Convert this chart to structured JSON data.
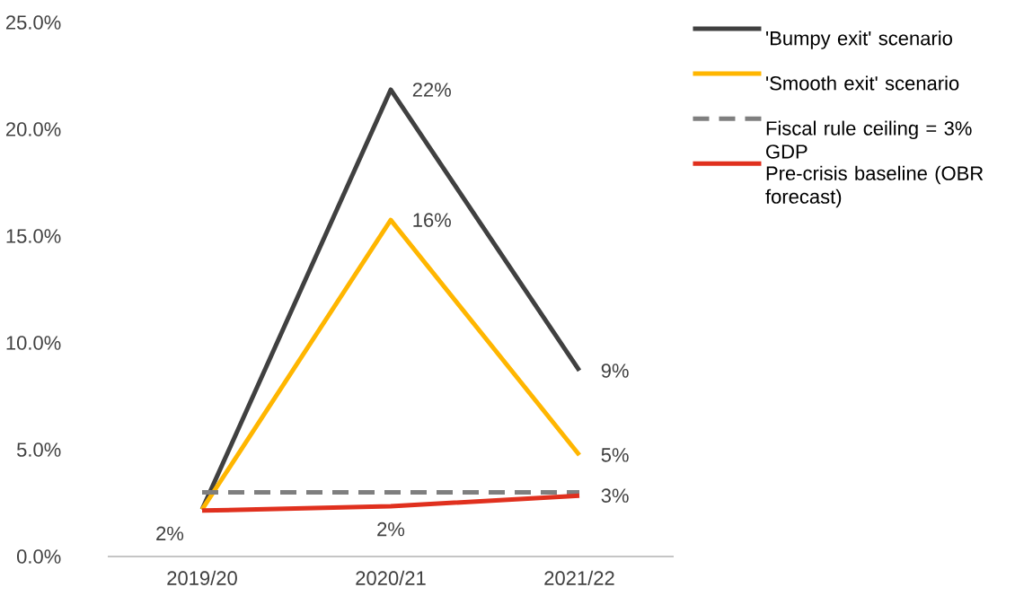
{
  "chart_data": {
    "type": "line",
    "categories": [
      "2019/20",
      "2020/21",
      "2021/22"
    ],
    "series": [
      {
        "name": "'Bumpy exit' scenario",
        "color": "#404040",
        "values": [
          2.2,
          21.85,
          8.7
        ],
        "value_labels": [
          null,
          "22%",
          "9%"
        ]
      },
      {
        "name": "'Smooth exit' scenario",
        "color": "#ffb600",
        "values": [
          2.2,
          15.75,
          4.75
        ],
        "value_labels": [
          null,
          "16%",
          "5%"
        ]
      },
      {
        "name": "Fiscal rule ceiling = 3% GDP",
        "color": "#7f7f7f",
        "values": [
          3,
          3,
          3
        ],
        "line_style": "dashed"
      },
      {
        "name": "Pre-crisis baseline (OBR forecast)",
        "color": "#e0301e",
        "values": [
          2.15,
          2.35,
          2.85
        ],
        "value_labels": [
          "2%",
          "2%",
          "3%"
        ]
      }
    ],
    "ylim": [
      0,
      25
    ],
    "yticks": [
      {
        "value": 0,
        "label": "0.0%"
      },
      {
        "value": 5,
        "label": "5.0%"
      },
      {
        "value": 10,
        "label": "10.0%"
      },
      {
        "value": 15,
        "label": "15.0%"
      },
      {
        "value": 20,
        "label": "20.0%"
      },
      {
        "value": 25,
        "label": "25.0%"
      }
    ],
    "legend": "top right",
    "grid": false,
    "marker": "none",
    "line_style": "solid"
  }
}
